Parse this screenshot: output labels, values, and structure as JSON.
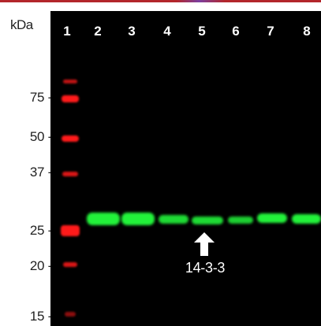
{
  "header": {
    "unit_label": "kDa"
  },
  "lanes": [
    "1",
    "2",
    "3",
    "4",
    "5",
    "6",
    "7",
    "8"
  ],
  "mw_markers": [
    "75 -",
    "50 -",
    "37 -",
    "25 -",
    "20 -",
    "15 -"
  ],
  "annotation": {
    "protein_label": "14-3-3",
    "arrow_icon": "up-arrow-icon"
  },
  "colors": {
    "background": "#000000",
    "ladder": "#ff1a1a",
    "target_band": "#22f23a",
    "annotation": "#ffffff"
  }
}
